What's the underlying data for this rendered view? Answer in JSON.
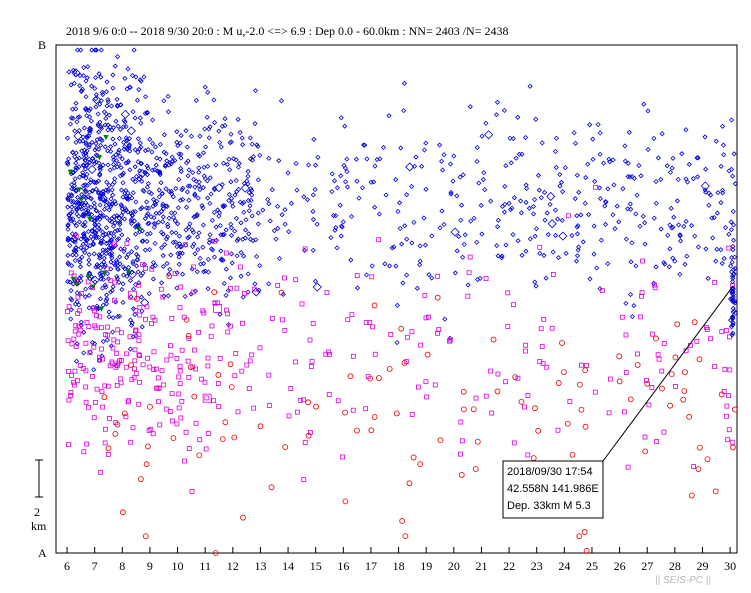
{
  "chart_data": {
    "type": "scatter",
    "title": "2018 9/6 0:0 -- 2018 9/30 20:0 : M u,-2.0 <=> 6.9 : Dep 0.0 - 60.0km : NN= 2403 /N= 2438",
    "xlabel": "",
    "ylabel": "",
    "y_top_label": "B",
    "y_bottom_label": "A",
    "scale_bar": {
      "value": "2",
      "unit": "km"
    },
    "xlim": [
      5.6,
      30.25
    ],
    "ylim": [
      0,
      1
    ],
    "x_ticks": [
      "6",
      "7",
      "8",
      "9",
      "10",
      "11",
      "12",
      "13",
      "14",
      "15",
      "16",
      "17",
      "18",
      "19",
      "20",
      "21",
      "22",
      "23",
      "24",
      "25",
      "26",
      "27",
      "28",
      "29",
      "30"
    ],
    "grid": false,
    "annotation": {
      "line1": "2018/09/30  17:54",
      "line2": "42.558N   141.986E",
      "line3": "Dep. 33km    M 5.3",
      "target_x": 30.1,
      "target_y": 0.525
    },
    "watermark": "|| SEIS-PC ||",
    "series": [
      {
        "marker": "diamond",
        "color": "#0000dd",
        "count": 1500
      },
      {
        "marker": "square",
        "color": "#dd00dd",
        "count": 380
      },
      {
        "marker": "circle",
        "color": "#ee0000",
        "count": 110
      },
      {
        "marker": "triangle",
        "color": "#008000",
        "count": 14
      }
    ]
  }
}
